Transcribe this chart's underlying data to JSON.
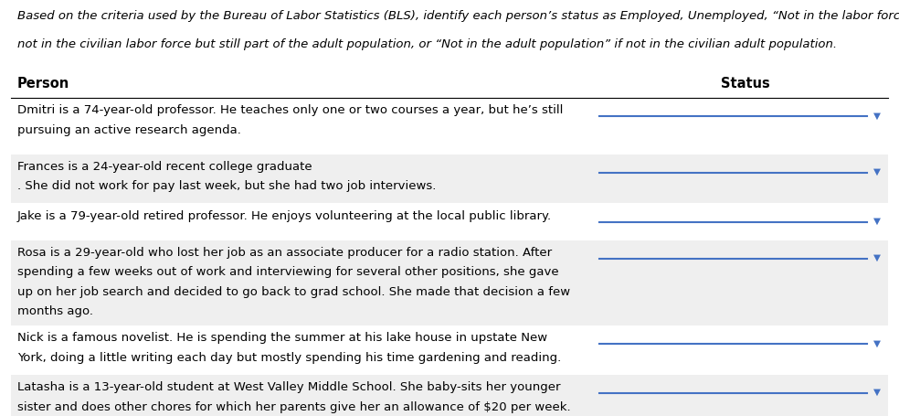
{
  "intro_line1": "Based on the criteria used by the Bureau of Labor Statistics (BLS), identify each person’s status as Employed, Unemployed, “Not in the labor force” if",
  "intro_line2": "not in the civilian labor force but still part of the adult population, or “Not in the adult population” if not in the civilian adult population.",
  "header_person": "Person",
  "header_status": "Status",
  "rows": [
    {
      "lines": [
        "Dmitri is a 74-year-old professor. He teaches only one or two courses a year, but he’s still",
        "pursuing an active research agenda."
      ],
      "shaded": false
    },
    {
      "lines": [
        "Frances is a 24-year-old recent college graduate",
        ". She did not work for pay last week, but she had two job interviews."
      ],
      "shaded": true
    },
    {
      "lines": [
        "Jake is a 79-year-old retired professor. He enjoys volunteering at the local public library."
      ],
      "shaded": false
    },
    {
      "lines": [
        "Rosa is a 29-year-old who lost her job as an associate producer for a radio station. After",
        "spending a few weeks out of work and interviewing for several other positions, she gave",
        "up on her job search and decided to go back to grad school. She made that decision a few",
        "months ago."
      ],
      "shaded": true
    },
    {
      "lines": [
        "Nick is a famous novelist. He is spending the summer at his lake house in upstate New",
        "York, doing a little writing each day but mostly spending his time gardening and reading."
      ],
      "shaded": false
    },
    {
      "lines": [
        "Latasha is a 13-year-old student at West Valley Middle School. She baby-sits her younger",
        "sister and does other chores for which her parents give her an allowance of $20 per week."
      ],
      "shaded": true
    }
  ],
  "bg_color": "#ffffff",
  "shaded_color": "#efefef",
  "text_color": "#000000",
  "header_line_color": "#000000",
  "dropdown_line_color": "#4472c4",
  "dropdown_arrow_color": "#4472c4",
  "intro_fontsize": 9.5,
  "header_fontsize": 10.5,
  "row_fontsize": 9.5,
  "fig_width": 9.84,
  "fig_height": 4.56,
  "dpi": 100
}
